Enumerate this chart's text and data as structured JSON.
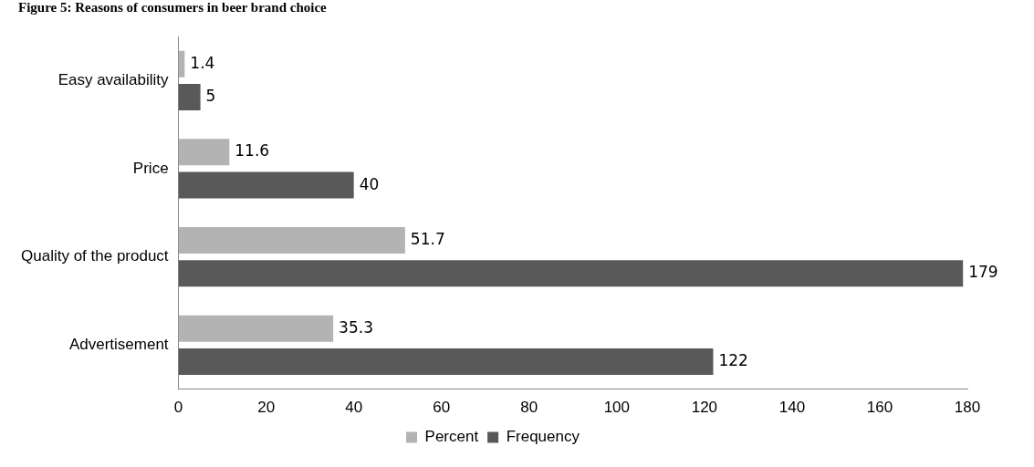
{
  "chart_data": {
    "type": "bar",
    "orientation": "horizontal",
    "title": "Figure 5: Reasons of consumers in beer brand choice",
    "categories": [
      "Easy availability",
      "Price",
      "Quality of the product",
      "Advertisement"
    ],
    "series": [
      {
        "name": "Percent",
        "color": "#b3b3b3",
        "values": [
          1.4,
          11.6,
          51.7,
          35.3
        ]
      },
      {
        "name": "Frequency",
        "color": "#595959",
        "values": [
          5,
          40,
          179,
          122
        ]
      }
    ],
    "xlim": [
      0,
      180
    ],
    "xticks": [
      0,
      20,
      40,
      60,
      80,
      100,
      120,
      140,
      160,
      180
    ],
    "grid": false,
    "legend": "bottom",
    "data_labels": true
  }
}
